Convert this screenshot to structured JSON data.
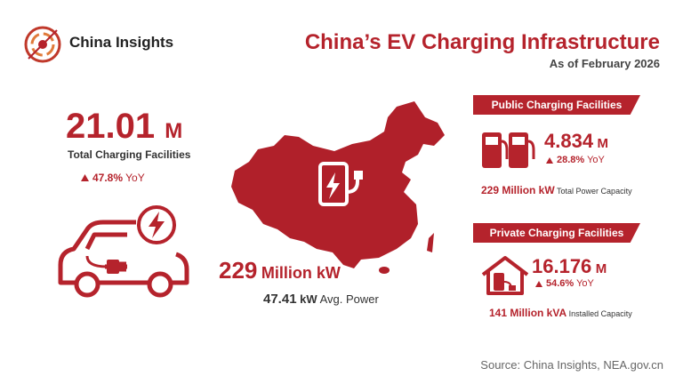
{
  "header": {
    "brand": "China Insights",
    "title": "China’s EV Charging Infrastructure",
    "subtitle": "As of February 2026"
  },
  "total": {
    "value": "21.01",
    "unit": "M",
    "label": "Total Charging Facilities",
    "growth": "47.8%",
    "growth_label": "YoY"
  },
  "power": {
    "value": "229",
    "unit": "Million kW",
    "avg_value": "47.41",
    "avg_unit": "kW",
    "avg_label": "Avg. Power"
  },
  "public": {
    "heading": "Public Charging Facilities",
    "value": "4.834",
    "unit": "M",
    "growth": "28.8%",
    "growth_label": "YoY",
    "capacity": "229 Million kW",
    "capacity_label": "Total Power Capacity"
  },
  "private": {
    "heading": "Private Charging Facilities",
    "value": "16.176",
    "unit": "M",
    "growth": "54.6%",
    "growth_label": "YoY",
    "capacity": "141 Million kVA",
    "capacity_label": "Installed Capacity"
  },
  "footer": {
    "source": "Source: China Insights, NEA.gov.cn"
  }
}
